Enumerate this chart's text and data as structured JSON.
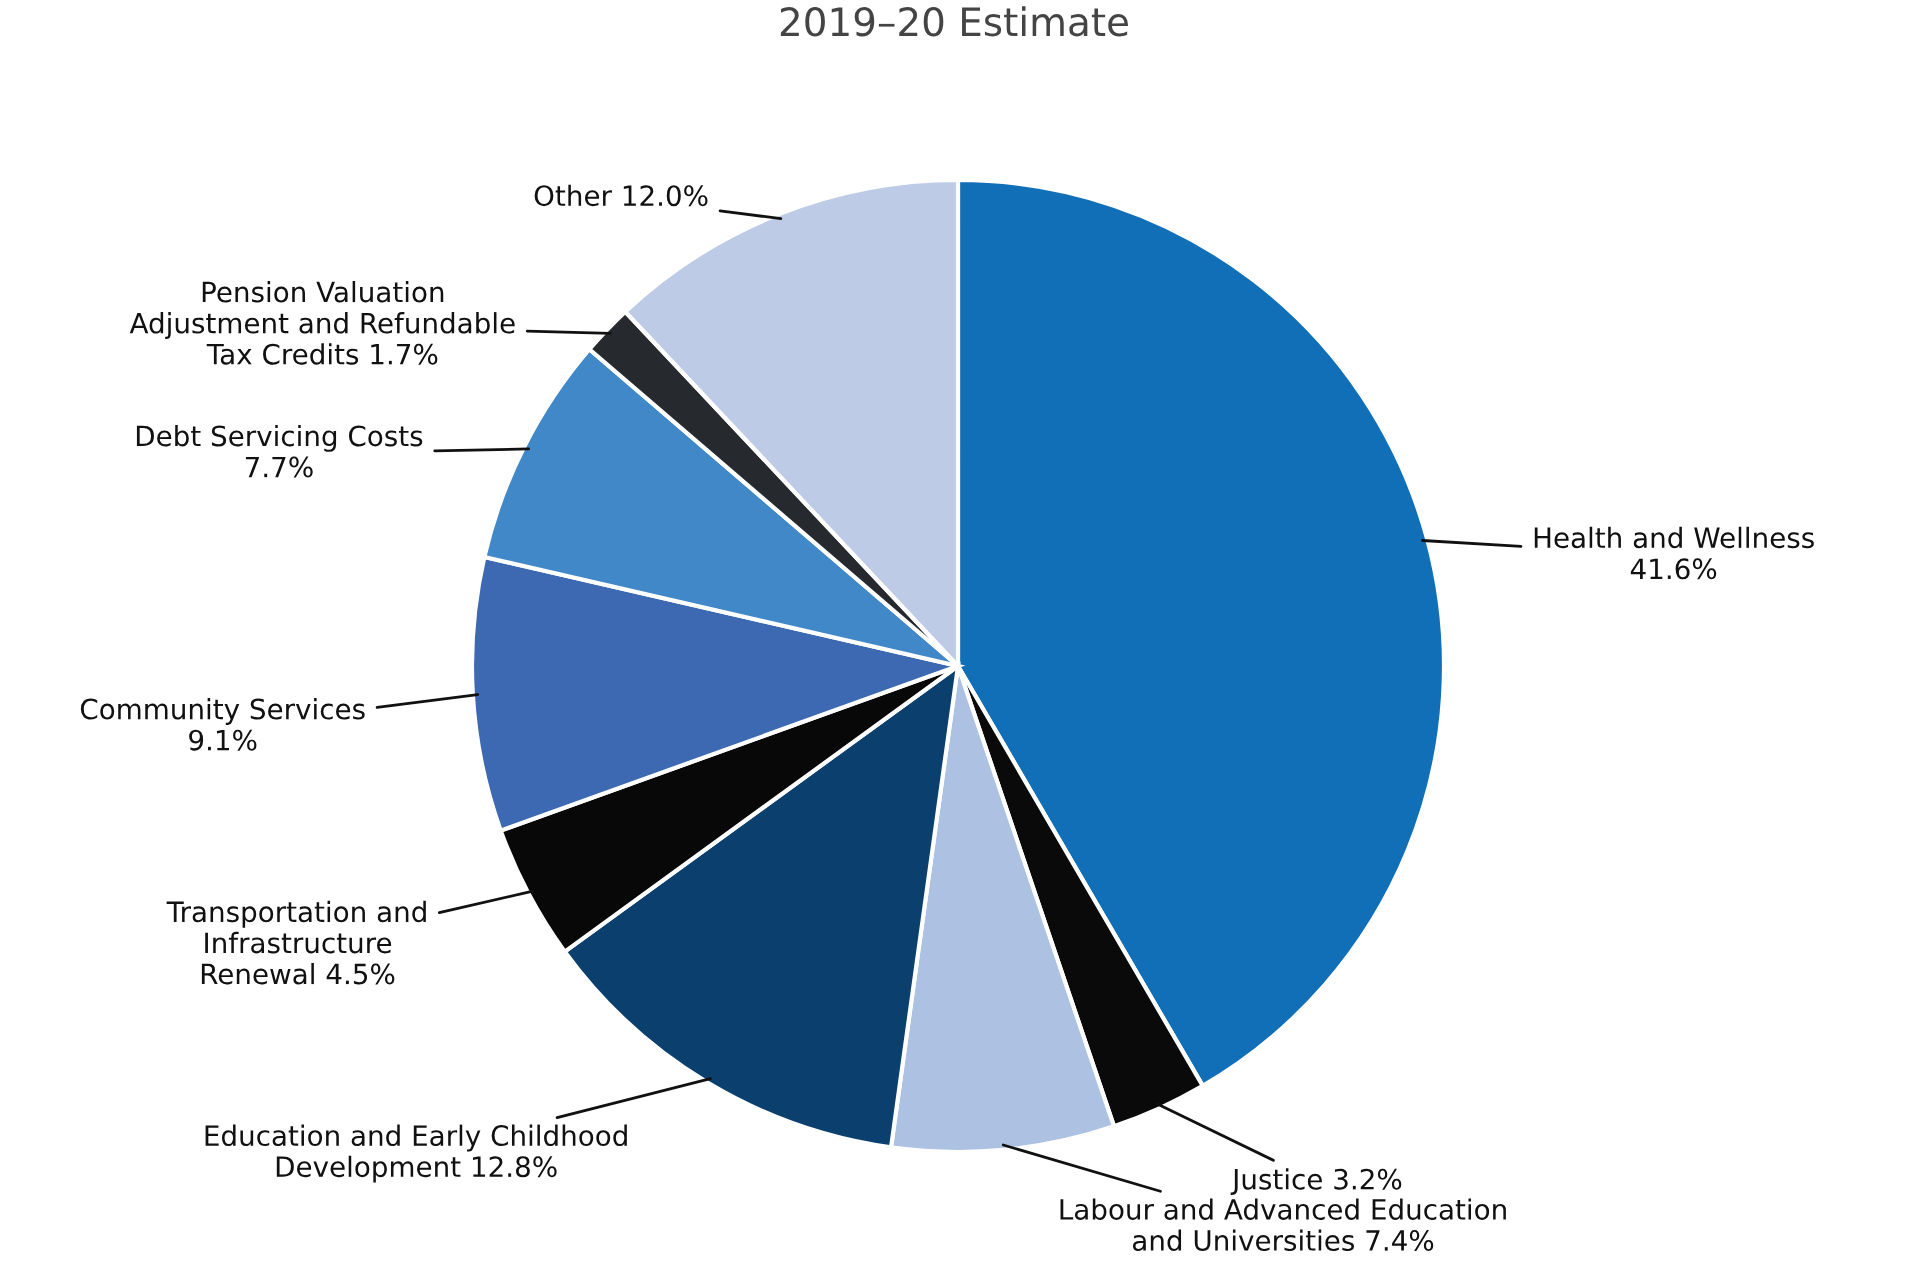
{
  "chart_data": {
    "type": "pie",
    "title": "2019–20 Estimate",
    "categories": [
      "Health and Wellness",
      "Justice",
      "Labour and Advanced Education\nand Universities",
      "Education and Early Childhood\nDevelopment",
      "Transportation and\nInfrastructure\nRenewal",
      "Community Services",
      "Debt Servicing Costs",
      "Pension Valuation\nAdjustment and Refundable\nTax Credits",
      "Other"
    ],
    "values": [
      41.6,
      3.2,
      7.4,
      12.8,
      4.5,
      9.1,
      7.7,
      1.7,
      12.0
    ],
    "colors": [
      "#116fb8",
      "#0a0a0a",
      "#adc1e3",
      "#0b3f6e",
      "#080808",
      "#3c69b2",
      "#4188c8",
      "#262a2e",
      "#bdcbe6"
    ],
    "value_labels": [
      "41.6%",
      "3.2%",
      "7.4%",
      "12.8%",
      "4.5%",
      "9.1%",
      "7.7%",
      "1.7%",
      "12.0%"
    ]
  }
}
